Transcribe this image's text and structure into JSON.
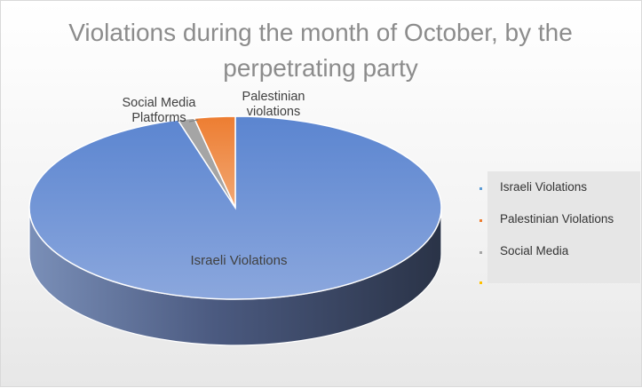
{
  "chart_data": {
    "type": "pie",
    "title": "Violations during the month of October, by the perpetrating party",
    "three_d": true,
    "legend_position": "right",
    "categories": [
      "Israeli Violations",
      "Palestinian Violations",
      "Social Media",
      ""
    ],
    "slice_labels": [
      "Israeli Violations",
      "Palestinian violations",
      "Social Media Platforms",
      ""
    ],
    "values": [
      95.5,
      1.3,
      3.2,
      0
    ],
    "colors": [
      "#4472c4",
      "#a5a5a5",
      "#ed7d31",
      "#ffc000"
    ]
  }
}
